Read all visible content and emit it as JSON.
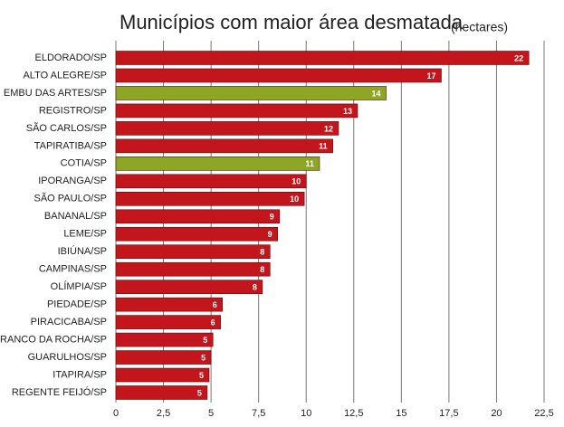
{
  "chart_data": {
    "type": "hbar",
    "title": "Municípios com maior área desmatada",
    "subtitle": "(hectares)",
    "categories": [
      "ELDORADO/SP",
      "ALTO ALEGRE/SP",
      "EMBU DAS ARTES/SP",
      "REGISTRO/SP",
      "SÃO CARLOS/SP",
      "TAPIRATIBA/SP",
      "COTIA/SP",
      "IPORANGA/SP",
      "SÃO PAULO/SP",
      "BANANAL/SP",
      "LEME/SP",
      "IBIÚNA/SP",
      "CAMPINAS/SP",
      "OLÍMPIA/SP",
      "PIEDADE/SP",
      "PIRACICABA/SP",
      "FRANCO DA ROCHA/SP",
      "GUARULHOS/SP",
      "ITAPIRA/SP",
      "REGENTE FEIJÓ/SP"
    ],
    "values": [
      21.7,
      17.1,
      14.2,
      12.7,
      11.7,
      11.4,
      10.7,
      10.0,
      9.9,
      8.6,
      8.5,
      8.1,
      8.1,
      7.7,
      5.6,
      5.5,
      5.1,
      5.0,
      4.9,
      4.8
    ],
    "value_labels": [
      "22",
      "17",
      "14",
      "13",
      "12",
      "11",
      "11",
      "10",
      "10",
      "9",
      "9",
      "8",
      "8",
      "8",
      "6",
      "6",
      "5",
      "5",
      "5",
      "5"
    ],
    "colors": [
      "#c3161c",
      "#c3161c",
      "#8ea626",
      "#c3161c",
      "#c3161c",
      "#c3161c",
      "#8ea626",
      "#c3161c",
      "#c3161c",
      "#c3161c",
      "#c3161c",
      "#c3161c",
      "#c3161c",
      "#c3161c",
      "#c3161c",
      "#c3161c",
      "#c3161c",
      "#c3161c",
      "#c3161c",
      "#c3161c"
    ],
    "xlim": [
      0,
      22.5
    ],
    "xticks": [
      0,
      {
        "value": 2.5,
        "label": "2,5"
      },
      5,
      {
        "value": 7.5,
        "label": "7,5"
      },
      10,
      {
        "value": 12.5,
        "label": "12,5"
      },
      15,
      {
        "value": 17.5,
        "label": "17,5"
      },
      20,
      {
        "value": 22.5,
        "label": "22,5"
      }
    ],
    "grid": true
  }
}
